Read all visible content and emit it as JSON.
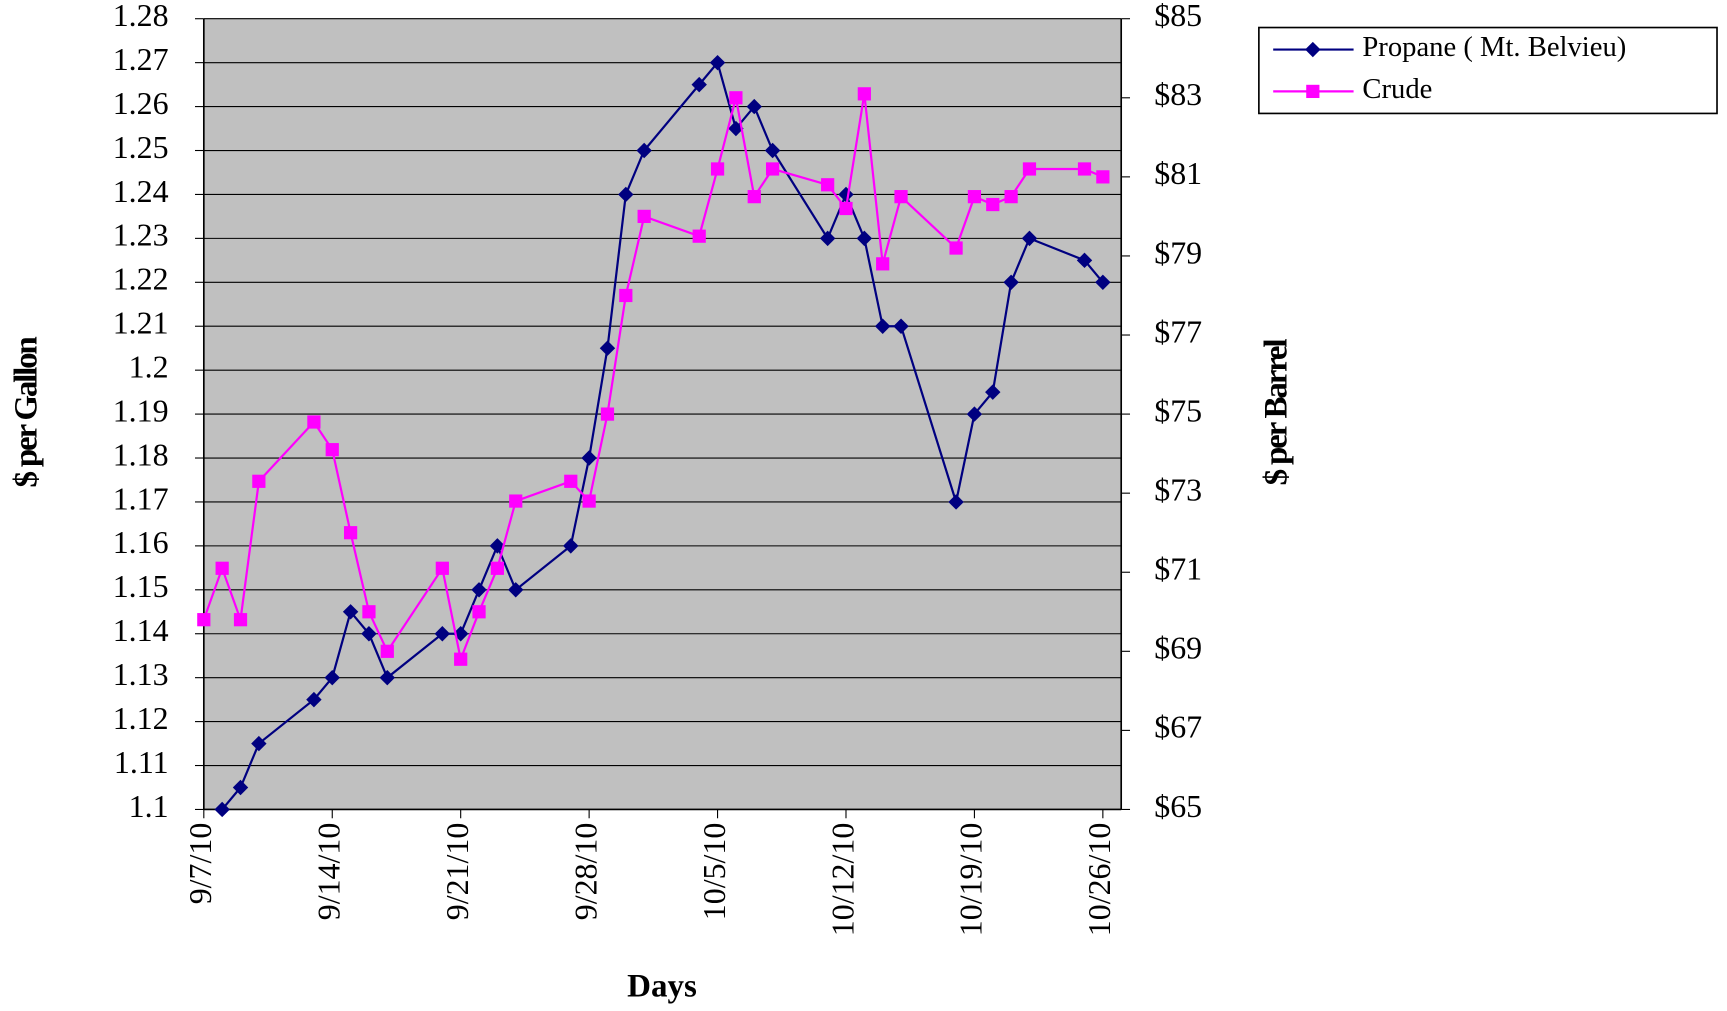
{
  "chart_data": {
    "type": "line",
    "x_label": "Days",
    "y_label": "$ per Gallon",
    "y2_label": "$ per Barrel",
    "x": [
      "9/7/10",
      "9/8/10",
      "9/9/10",
      "9/10/10",
      "9/13/10",
      "9/14/10",
      "9/15/10",
      "9/16/10",
      "9/17/10",
      "9/20/10",
      "9/21/10",
      "9/22/10",
      "9/23/10",
      "9/24/10",
      "9/27/10",
      "9/28/10",
      "9/29/10",
      "9/30/10",
      "10/1/10",
      "10/4/10",
      "10/5/10",
      "10/6/10",
      "10/7/10",
      "10/8/10",
      "10/11/10",
      "10/12/10",
      "10/13/10",
      "10/14/10",
      "10/15/10",
      "10/18/10",
      "10/19/10",
      "10/20/10",
      "10/21/10",
      "10/22/10",
      "10/25/10",
      "10/26/10"
    ],
    "series": [
      {
        "name": "Propane ( Mt. Belvieu)",
        "color": "#000080",
        "marker": "diamond",
        "values": [
          null,
          1.1,
          1.105,
          1.115,
          1.125,
          1.13,
          1.145,
          1.14,
          1.13,
          1.14,
          1.14,
          1.15,
          1.16,
          1.15,
          1.16,
          1.18,
          1.205,
          1.24,
          1.25,
          1.265,
          1.27,
          1.255,
          1.26,
          1.25,
          1.23,
          1.24,
          1.23,
          1.21,
          1.21,
          1.17,
          1.19,
          1.195,
          1.22,
          1.23,
          1.225,
          1.22
        ]
      },
      {
        "name": "Crude",
        "color": "#ff00ff",
        "marker": "square",
        "axis": "y2",
        "values": [
          69.8,
          71.1,
          69.8,
          73.3,
          74.8,
          74.1,
          72.0,
          70.0,
          69.0,
          71.1,
          68.8,
          70.0,
          71.1,
          72.8,
          73.3,
          72.8,
          75.0,
          78.0,
          80.0,
          79.5,
          81.2,
          83.0,
          80.5,
          81.2,
          80.8,
          80.2,
          83.1,
          78.8,
          80.5,
          79.2,
          80.5,
          80.3,
          80.5,
          81.2,
          81.2,
          81.0
        ]
      }
    ],
    "xlim": [
      "9/7/10",
      "10/27/10"
    ],
    "xticks": [
      "9/7/10",
      "9/14/10",
      "9/21/10",
      "9/28/10",
      "10/5/10",
      "10/12/10",
      "10/19/10",
      "10/26/10"
    ],
    "ylim": [
      1.1,
      1.28
    ],
    "yticks": [
      1.1,
      1.11,
      1.12,
      1.13,
      1.14,
      1.15,
      1.16,
      1.17,
      1.18,
      1.19,
      1.2,
      1.21,
      1.22,
      1.23,
      1.24,
      1.25,
      1.26,
      1.27,
      1.28
    ],
    "y2lim": [
      65,
      85
    ],
    "y2ticks": [
      {
        "value": 65,
        "label": "$65"
      },
      {
        "value": 67,
        "label": "$67"
      },
      {
        "value": 69,
        "label": "$69"
      },
      {
        "value": 71,
        "label": "$71"
      },
      {
        "value": 73,
        "label": "$73"
      },
      {
        "value": 75,
        "label": "$75"
      },
      {
        "value": 77,
        "label": "$77"
      },
      {
        "value": 79,
        "label": "$79"
      },
      {
        "value": 81,
        "label": "$81"
      },
      {
        "value": 83,
        "label": "$83"
      },
      {
        "value": 85,
        "label": "$85"
      }
    ],
    "grid": true,
    "legend": "top-right"
  }
}
